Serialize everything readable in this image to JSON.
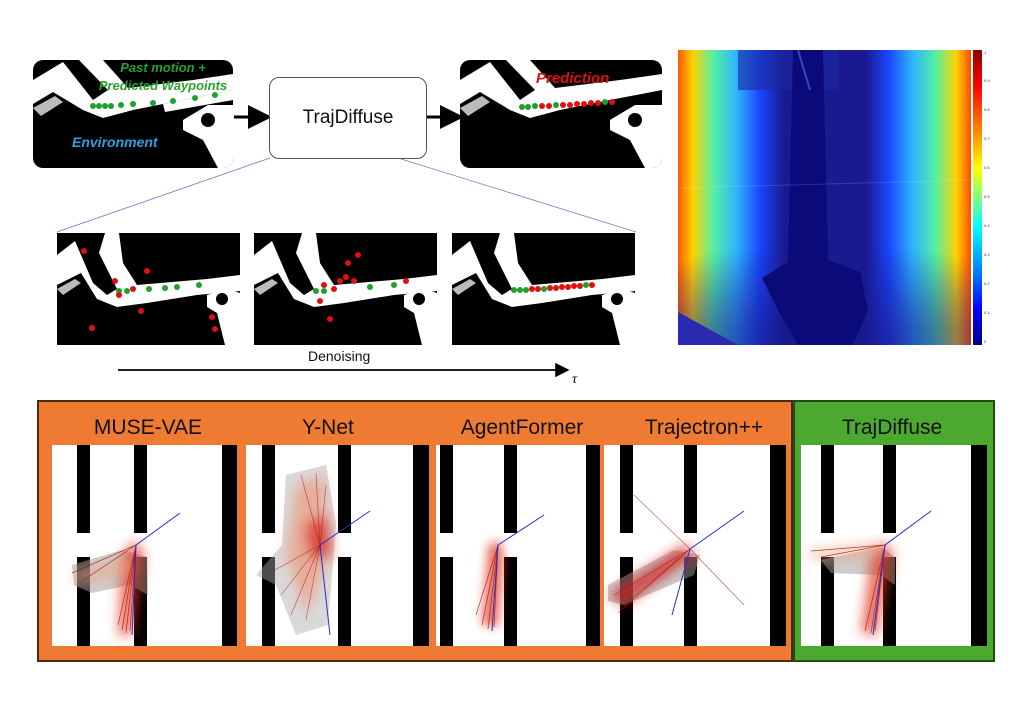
{
  "pipeline": {
    "input_label_line1": "Past motion +",
    "input_label_line2": "Predicted Waypoints",
    "environment_label": "Environment",
    "model_label": "TrajDiffuse",
    "output_label": "Prediction"
  },
  "denoising": {
    "label": "Denoising",
    "axis_symbol": "τ"
  },
  "colorbar": {
    "colormap": "jet",
    "ticks": [
      "1",
      "0.9",
      "0.8",
      "0.7",
      "0.6",
      "0.5",
      "0.4",
      "0.3",
      "0.2",
      "0.1",
      "0"
    ]
  },
  "comparison": {
    "baseline_color": "#ef7b33",
    "ours_color": "#4ca92f",
    "methods": [
      "MUSE-VAE",
      "Y-Net",
      "AgentFormer",
      "Trajectron++",
      "TrajDiffuse"
    ]
  },
  "colors": {
    "past_motion": "#2ca02c",
    "prediction": "#e01010",
    "environment_text": "#29a3e0"
  }
}
